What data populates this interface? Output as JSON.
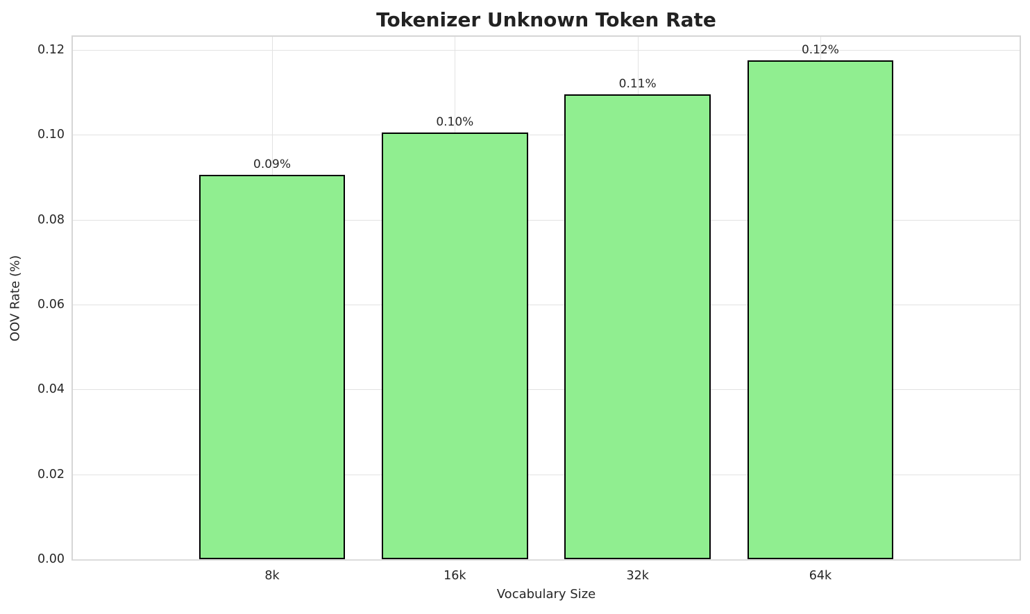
{
  "chart_data": {
    "type": "bar",
    "title": "Tokenizer Unknown Token Rate",
    "xlabel": "Vocabulary Size",
    "ylabel": "OOV Rate (%)",
    "categories": [
      "8k",
      "16k",
      "32k",
      "64k"
    ],
    "values": [
      0.0905,
      0.1005,
      0.1095,
      0.1175
    ],
    "bar_labels": [
      "0.09%",
      "0.10%",
      "0.11%",
      "0.12%"
    ],
    "ytick_labels": [
      "0.00",
      "0.02",
      "0.04",
      "0.06",
      "0.08",
      "0.10",
      "0.12"
    ],
    "ytick_values": [
      0,
      0.02,
      0.04,
      0.06,
      0.08,
      0.1,
      0.12
    ],
    "ylim": [
      0,
      0.1231
    ],
    "grid": true,
    "legend_position": "none",
    "bar_color": "#90EE90",
    "bar_edge_color": "#000000",
    "grid_color": "#e2e2e2",
    "spine_color": "#d6d6d6",
    "text_color": "#262626",
    "background_color": "#ffffff"
  }
}
